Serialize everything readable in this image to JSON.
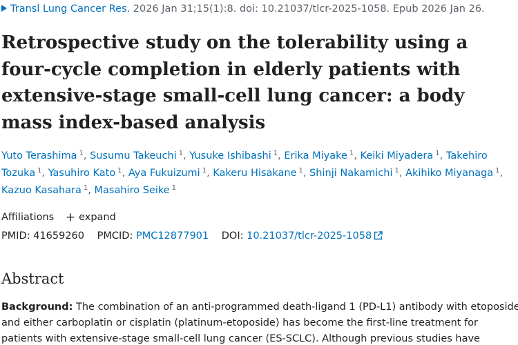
{
  "citation": {
    "journal": "Transl Lung Cancer Res.",
    "details": "2026 Jan 31;15(1):8. doi: 10.21037/tlcr-2025-1058. Epub 2026 Jan 26."
  },
  "title": "Retrospective study on the tolerability using a four-cycle completion in elderly patients with extensive-stage small-cell lung cancer: a body mass index-based analysis",
  "authors": [
    {
      "name": "Yuto Terashima",
      "aff": "1"
    },
    {
      "name": "Susumu Takeuchi",
      "aff": "1"
    },
    {
      "name": "Yusuke Ishibashi",
      "aff": "1"
    },
    {
      "name": "Erika Miyake",
      "aff": "1"
    },
    {
      "name": "Keiki Miyadera",
      "aff": "1"
    },
    {
      "name": "Takehiro Tozuka",
      "aff": "1"
    },
    {
      "name": "Yasuhiro Kato",
      "aff": "1"
    },
    {
      "name": "Aya Fukuizumi",
      "aff": "1"
    },
    {
      "name": "Kakeru Hisakane",
      "aff": "1"
    },
    {
      "name": "Shinji Nakamichi",
      "aff": "1"
    },
    {
      "name": "Akihiko Miyanaga",
      "aff": "1"
    },
    {
      "name": "Kazuo Kasahara",
      "aff": "1"
    },
    {
      "name": "Masahiro Seike",
      "aff": "1"
    }
  ],
  "affiliations": {
    "label": "Affiliations",
    "toggle_icon": "plus-icon",
    "toggle_label": "expand"
  },
  "ids": {
    "pmid_label": "PMID:",
    "pmid": "41659260",
    "pmcid_label": "PMCID:",
    "pmcid": "PMC12877901",
    "doi_label": "DOI:",
    "doi": "10.21037/tlcr-2025-1058",
    "doi_icon": "external-link-icon"
  },
  "abstract": {
    "heading": "Abstract",
    "background_label": "Background:",
    "background_text": "The combination of an anti-programmed death-ligand 1 (PD-L1) antibody with etoposide and either carboplatin or cisplatin (platinum-etoposide) has become the first-line treatment for patients with extensive-stage small-cell lung cancer (ES-SCLC). Although previous studies have"
  },
  "colors": {
    "link": "#0071bc",
    "text": "#212121",
    "muted": "#5b616b"
  }
}
